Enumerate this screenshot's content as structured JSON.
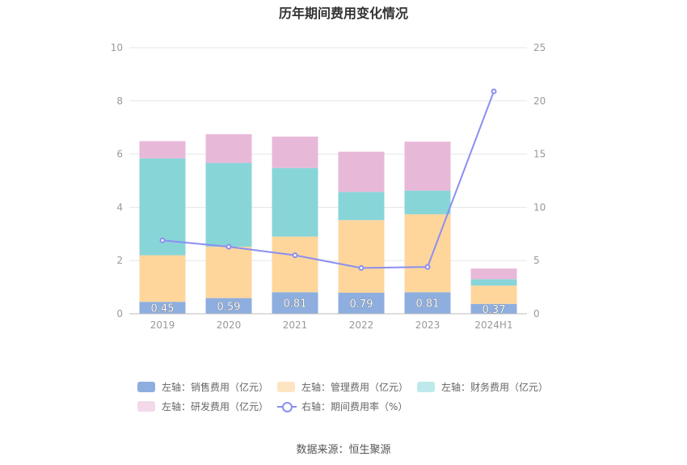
{
  "title": "历年期间费用变化情况",
  "source": "数据来源：恒生聚源",
  "chart_data": {
    "type": "bar",
    "stacked": true,
    "categories": [
      "2019",
      "2020",
      "2021",
      "2022",
      "2023",
      "2024H1"
    ],
    "y_left": {
      "min": 0,
      "max": 10,
      "ticks": [
        0,
        2,
        4,
        6,
        8,
        10
      ]
    },
    "y_right": {
      "min": 0,
      "max": 25,
      "ticks": [
        0,
        5,
        10,
        15,
        20,
        25
      ]
    },
    "grid": true,
    "legend_position": "bottom",
    "series": [
      {
        "name": "左轴：销售费用（亿元）",
        "axis": "left",
        "color": "#8eaedf",
        "values": [
          0.45,
          0.59,
          0.81,
          0.79,
          0.81,
          0.37
        ],
        "show_labels": true
      },
      {
        "name": "左轴：管理费用（亿元）",
        "axis": "left",
        "color": "#fed69c",
        "values": [
          1.75,
          1.93,
          2.09,
          2.73,
          2.93,
          0.69
        ]
      },
      {
        "name": "左轴：财务费用（亿元）",
        "axis": "left",
        "color": "#88d5d8",
        "values": [
          3.64,
          3.15,
          2.58,
          1.06,
          0.89,
          0.24
        ]
      },
      {
        "name": "左轴：研发费用（亿元）",
        "axis": "left",
        "color": "#e8b8d9",
        "values": [
          0.65,
          1.08,
          1.18,
          1.51,
          1.84,
          0.4
        ]
      }
    ],
    "line_series": {
      "name": "右轴：期间费用率（%）",
      "axis": "right",
      "color": "#8b8ff0",
      "values": [
        6.9,
        6.3,
        5.5,
        4.3,
        4.4,
        20.9
      ]
    }
  }
}
